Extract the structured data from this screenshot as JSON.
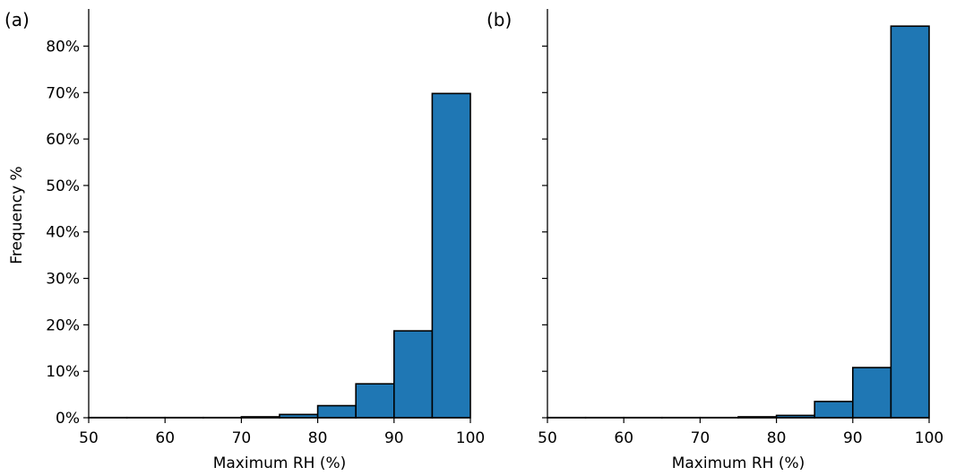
{
  "chart_data": [
    {
      "type": "bar",
      "panel_label": "(a)",
      "xlabel": "Maximum RH (%)",
      "ylabel": "Frequency %",
      "xlim": [
        50,
        100
      ],
      "ylim": [
        0,
        88
      ],
      "xticks": [
        50,
        60,
        70,
        80,
        90,
        100
      ],
      "yticks": [
        0,
        10,
        20,
        30,
        40,
        50,
        60,
        70,
        80
      ],
      "ytick_labels": [
        "0%",
        "10%",
        "20%",
        "30%",
        "40%",
        "50%",
        "60%",
        "70%",
        "80%"
      ],
      "grid": false,
      "bin_edges": [
        50,
        55,
        60,
        65,
        70,
        75,
        80,
        85,
        90,
        95,
        100
      ],
      "values": [
        0.05,
        0.05,
        0.05,
        0.05,
        0.2,
        0.7,
        2.6,
        7.3,
        18.7,
        69.8
      ],
      "bar_color": "#1f77b4",
      "edge_color": "#000000"
    },
    {
      "type": "bar",
      "panel_label": "(b)",
      "xlabel": "Maximum RH (%)",
      "ylabel": "",
      "xlim": [
        50,
        100
      ],
      "ylim": [
        0,
        88
      ],
      "xticks": [
        50,
        60,
        70,
        80,
        90,
        100
      ],
      "yticks": [
        0,
        10,
        20,
        30,
        40,
        50,
        60,
        70,
        80
      ],
      "ytick_labels": [],
      "grid": false,
      "bin_edges": [
        50,
        55,
        60,
        65,
        70,
        75,
        80,
        85,
        90,
        95,
        100
      ],
      "values": [
        0.05,
        0.05,
        0.05,
        0.05,
        0.05,
        0.2,
        0.5,
        3.5,
        10.8,
        84.3
      ],
      "bar_color": "#1f77b4",
      "edge_color": "#000000"
    }
  ]
}
